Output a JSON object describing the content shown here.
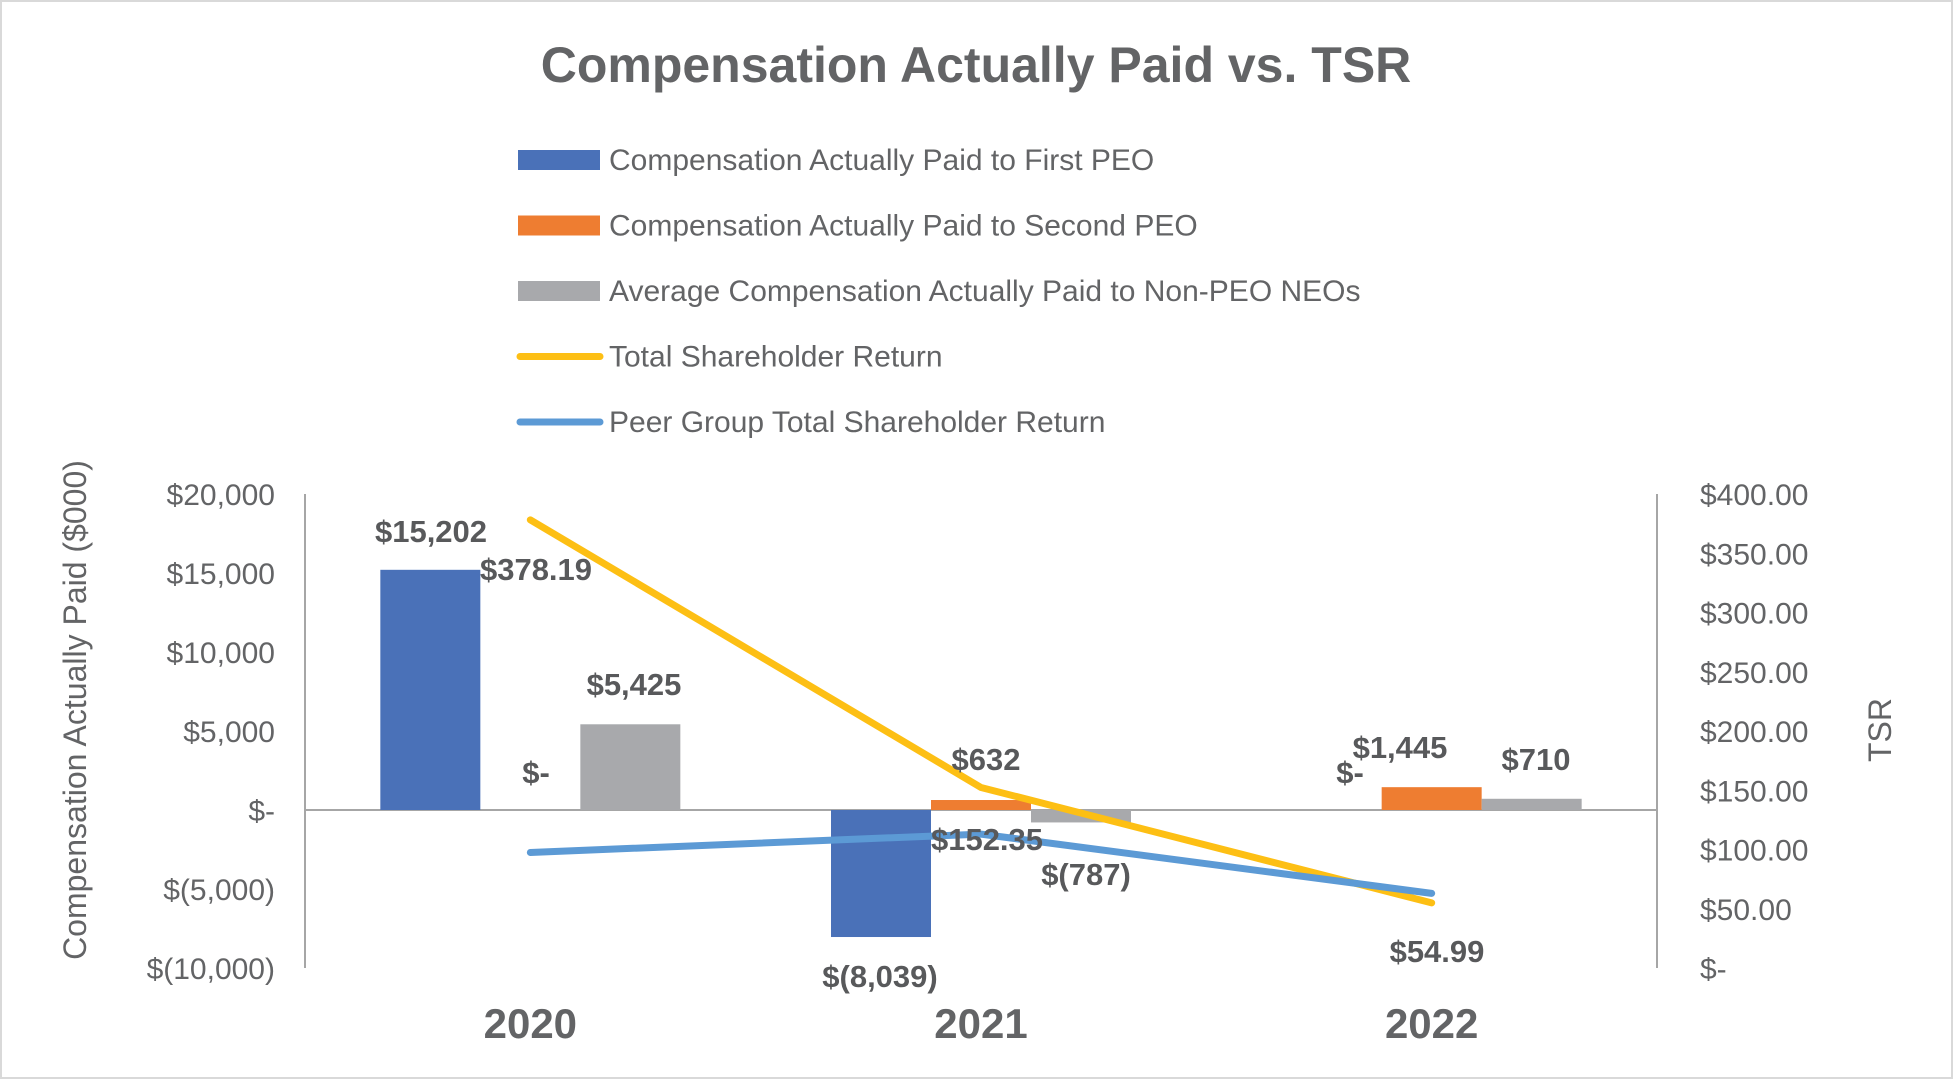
{
  "colors": {
    "first_peo": "#4a71b8",
    "second_peo": "#ee7d31",
    "non_peo": "#a8a9ac",
    "tsr": "#fdbf14",
    "peer_tsr": "#5c9ad5",
    "text": "#636466",
    "axis": "#a6a6a6",
    "border": "#d9d9d9"
  },
  "chart_data": {
    "type": "bar",
    "title": "Compensation Actually Paid vs. TSR",
    "categories": [
      "2020",
      "2021",
      "2022"
    ],
    "ylabel": "Compensation Actually Paid ($000)",
    "y2label": "TSR",
    "ylim": [
      -10000,
      20000
    ],
    "y2lim": [
      0,
      400
    ],
    "y_ticks": [
      {
        "value": 20000,
        "label": "$20,000"
      },
      {
        "value": 15000,
        "label": "$15,000"
      },
      {
        "value": 10000,
        "label": "$10,000"
      },
      {
        "value": 5000,
        "label": "$5,000"
      },
      {
        "value": 0,
        "label": "$-"
      },
      {
        "value": -5000,
        "label": "$(5,000)"
      },
      {
        "value": -10000,
        "label": "$(10,000)"
      }
    ],
    "y2_ticks": [
      {
        "value": 400,
        "label": "$400.00"
      },
      {
        "value": 350,
        "label": "$350.00"
      },
      {
        "value": 300,
        "label": "$300.00"
      },
      {
        "value": 250,
        "label": "$250.00"
      },
      {
        "value": 200,
        "label": "$200.00"
      },
      {
        "value": 150,
        "label": "$150.00"
      },
      {
        "value": 100,
        "label": "$100.00"
      },
      {
        "value": 50,
        "label": "$50.00"
      },
      {
        "value": 0,
        "label": "$-"
      }
    ],
    "legend_position": "top-center",
    "series": [
      {
        "key": "first_peo",
        "name": "Compensation Actually Paid to First PEO",
        "kind": "bar",
        "axis": "left",
        "values": [
          15202,
          -8039,
          null
        ],
        "labels": [
          "$15,202",
          "$(8,039)",
          "$-"
        ]
      },
      {
        "key": "second_peo",
        "name": "Compensation Actually Paid to Second PEO",
        "kind": "bar",
        "axis": "left",
        "values": [
          0,
          632,
          1445
        ],
        "labels": [
          "$-",
          "$632",
          "$1,445"
        ]
      },
      {
        "key": "non_peo",
        "name": "Average Compensation Actually Paid to Non-PEO NEOs",
        "kind": "bar",
        "axis": "left",
        "values": [
          5425,
          -787,
          710
        ],
        "labels": [
          "$5,425",
          "$(787)",
          "$710"
        ]
      },
      {
        "key": "tsr",
        "name": "Total Shareholder Return",
        "kind": "line",
        "axis": "right",
        "values": [
          378.19,
          152.35,
          54.99
        ],
        "labels": [
          "$378.19",
          "$152.35",
          "$54.99"
        ]
      },
      {
        "key": "peer_tsr",
        "name": "Peer Group Total Shareholder Return",
        "kind": "line",
        "axis": "right",
        "values": [
          97.5,
          113,
          63
        ],
        "labels": [
          null,
          null,
          null
        ]
      }
    ]
  }
}
